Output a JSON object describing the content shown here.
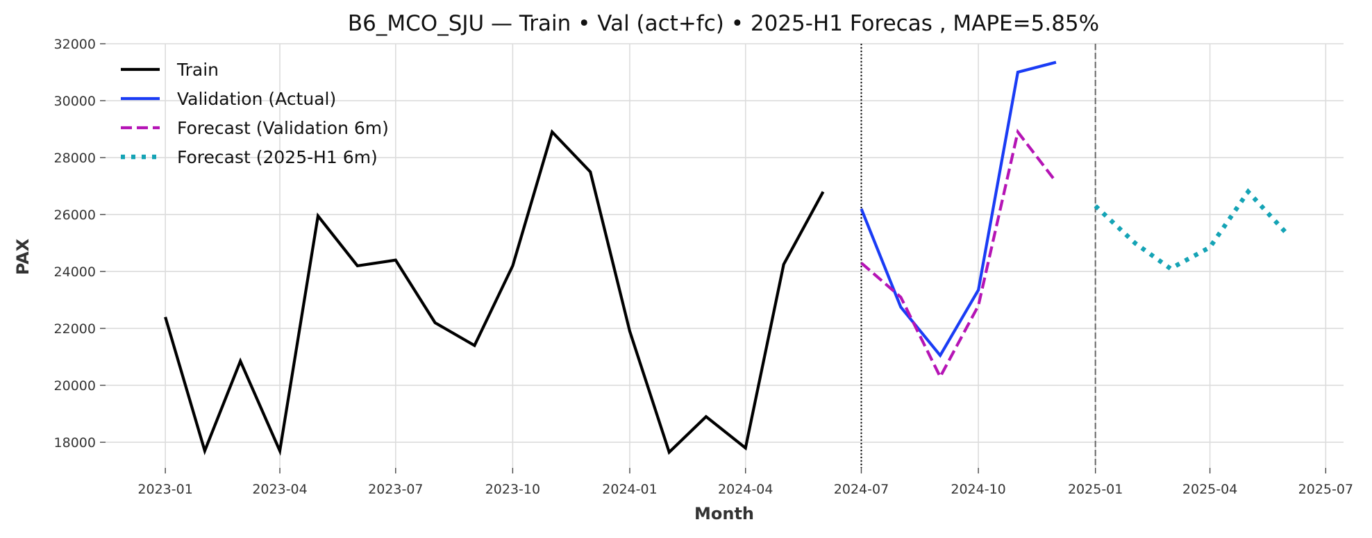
{
  "chart_data": {
    "type": "line",
    "title": "B6_MCO_SJU — Train • Val (act+fc) • 2025-H1 Forecas , MAPE=5.85%",
    "xlabel": "Month",
    "ylabel": "PAX",
    "ylim": [
      17100,
      32000
    ],
    "xlim": [
      "2022-11-15",
      "2025-07-15"
    ],
    "x_ticks": [
      "2023-01",
      "2023-04",
      "2023-07",
      "2023-10",
      "2024-01",
      "2024-04",
      "2024-07",
      "2024-10",
      "2025-01",
      "2025-04",
      "2025-07"
    ],
    "y_ticks": [
      18000,
      20000,
      22000,
      24000,
      26000,
      28000,
      30000,
      32000
    ],
    "grid": true,
    "legend_position": "top-left",
    "vlines": [
      {
        "x": "2024-07",
        "style": "dotted",
        "color": "#000000"
      },
      {
        "x": "2025-01",
        "style": "dashed",
        "color": "#666666"
      }
    ],
    "series": [
      {
        "name": "Train",
        "color": "#000000",
        "style": "solid",
        "x": [
          "2023-01",
          "2023-02",
          "2023-03",
          "2023-04",
          "2023-05",
          "2023-06",
          "2023-07",
          "2023-08",
          "2023-09",
          "2023-10",
          "2023-11",
          "2023-12",
          "2024-01",
          "2024-02",
          "2024-03",
          "2024-04",
          "2024-05",
          "2024-06"
        ],
        "values": [
          22400,
          17700,
          20850,
          17700,
          25950,
          24200,
          24400,
          22200,
          21400,
          24200,
          28900,
          27500,
          21900,
          17650,
          18900,
          17800,
          24250,
          26800
        ]
      },
      {
        "name": "Validation (Actual)",
        "color": "#1a3cf5",
        "style": "solid",
        "x": [
          "2024-07",
          "2024-08",
          "2024-09",
          "2024-10",
          "2024-11",
          "2024-12"
        ],
        "values": [
          26200,
          22750,
          21050,
          23350,
          31000,
          31350
        ]
      },
      {
        "name": "Forecast (Validation 6m)",
        "color": "#b514b5",
        "style": "dashed",
        "x": [
          "2024-07",
          "2024-08",
          "2024-09",
          "2024-10",
          "2024-11",
          "2024-12"
        ],
        "values": [
          24300,
          23100,
          20300,
          22800,
          28900,
          27150
        ]
      },
      {
        "name": "Forecast (2025-H1 6m)",
        "color": "#14a3b5",
        "style": "dotted",
        "x": [
          "2025-01",
          "2025-02",
          "2025-03",
          "2025-04",
          "2025-05",
          "2025-06"
        ],
        "values": [
          26300,
          25000,
          24100,
          24850,
          26800,
          25300
        ]
      }
    ]
  }
}
